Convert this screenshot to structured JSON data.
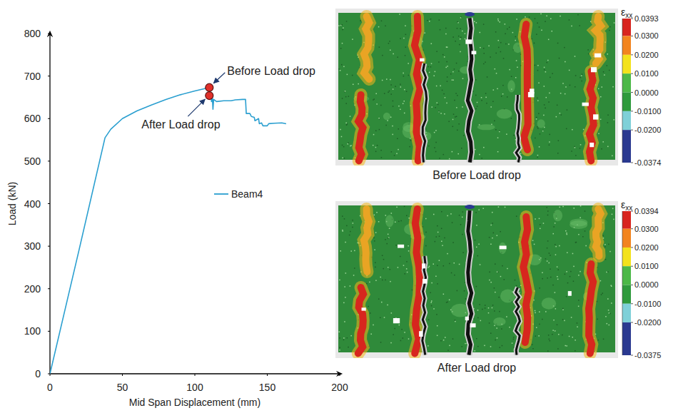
{
  "chart_data": [
    {
      "type": "line",
      "x_label": "Mid Span Displacement (mm)",
      "y_label": "Load (kN)",
      "xlim": [
        0,
        200
      ],
      "ylim": [
        0,
        800
      ],
      "xticks": [
        0,
        50,
        100,
        150,
        200
      ],
      "yticks": [
        0,
        100,
        200,
        300,
        400,
        500,
        600,
        700,
        800
      ],
      "grid": false,
      "legend": "center",
      "x": [
        0,
        20,
        38,
        42,
        50,
        60,
        70,
        80,
        90,
        100,
        110,
        110.5,
        111,
        111.5,
        112,
        112.5,
        113,
        115,
        120,
        125,
        128,
        133,
        135,
        135.5,
        138,
        139,
        141,
        141.5,
        143,
        144,
        144.5,
        146,
        147,
        150,
        151,
        155,
        160,
        163
      ],
      "series": [
        {
          "name": "Beam4",
          "color": "#2a9fd0",
          "values": [
            0,
            290,
            555,
            575,
            600,
            618,
            632,
            645,
            656,
            665,
            673,
            652,
            660,
            640,
            655,
            622,
            645,
            640,
            642,
            642,
            644,
            645,
            645,
            612,
            612,
            605,
            603,
            595,
            598,
            600,
            588,
            590,
            583,
            583,
            588,
            589,
            590,
            588
          ]
        }
      ],
      "annotations": [
        {
          "text": "Before Load drop",
          "x": 110,
          "y": 673,
          "color": "#e0302a"
        },
        {
          "text": "After Load drop",
          "x": 110,
          "y": 654,
          "color": "#e0302a"
        }
      ]
    },
    {
      "type": "image",
      "caption": "Before Load drop",
      "colorbar": {
        "label": "εxx",
        "lim": [
          -0.0374,
          0.0393
        ],
        "ticks": [
          0.0393,
          {
            "value": 0.03,
            "label": "0.0300"
          },
          {
            "value": 0.02,
            "label": "0.0200"
          },
          {
            "value": 0.01,
            "label": "0.0100"
          },
          {
            "value": 0,
            "label": "0.0000"
          },
          {
            "value": -0.01,
            "label": "-0.0100"
          },
          {
            "value": -0.02,
            "label": "-0.0200"
          },
          -0.0374
        ],
        "colors": [
          "#d8241f",
          "#f2841f",
          "#f3e21c",
          "#4cb847",
          "#2f9a3c",
          "#7fd0d8",
          "#2a3990"
        ]
      }
    },
    {
      "type": "image",
      "caption": "After Load drop",
      "colorbar": {
        "label": "εxx",
        "lim": [
          -0.0375,
          0.0394
        ],
        "ticks": [
          0.0394,
          {
            "value": 0.03,
            "label": "0.0300"
          },
          {
            "value": 0.02,
            "label": "0.0200"
          },
          {
            "value": 0.01,
            "label": "0.0100"
          },
          {
            "value": 0,
            "label": "0.0000"
          },
          {
            "value": -0.01,
            "label": "-0.0100"
          },
          {
            "value": -0.02,
            "label": "-0.0200"
          },
          -0.0375
        ],
        "colors": [
          "#d8241f",
          "#f2841f",
          "#f3e21c",
          "#4cb847",
          "#2f9a3c",
          "#7fd0d8",
          "#2a3990"
        ]
      }
    }
  ]
}
